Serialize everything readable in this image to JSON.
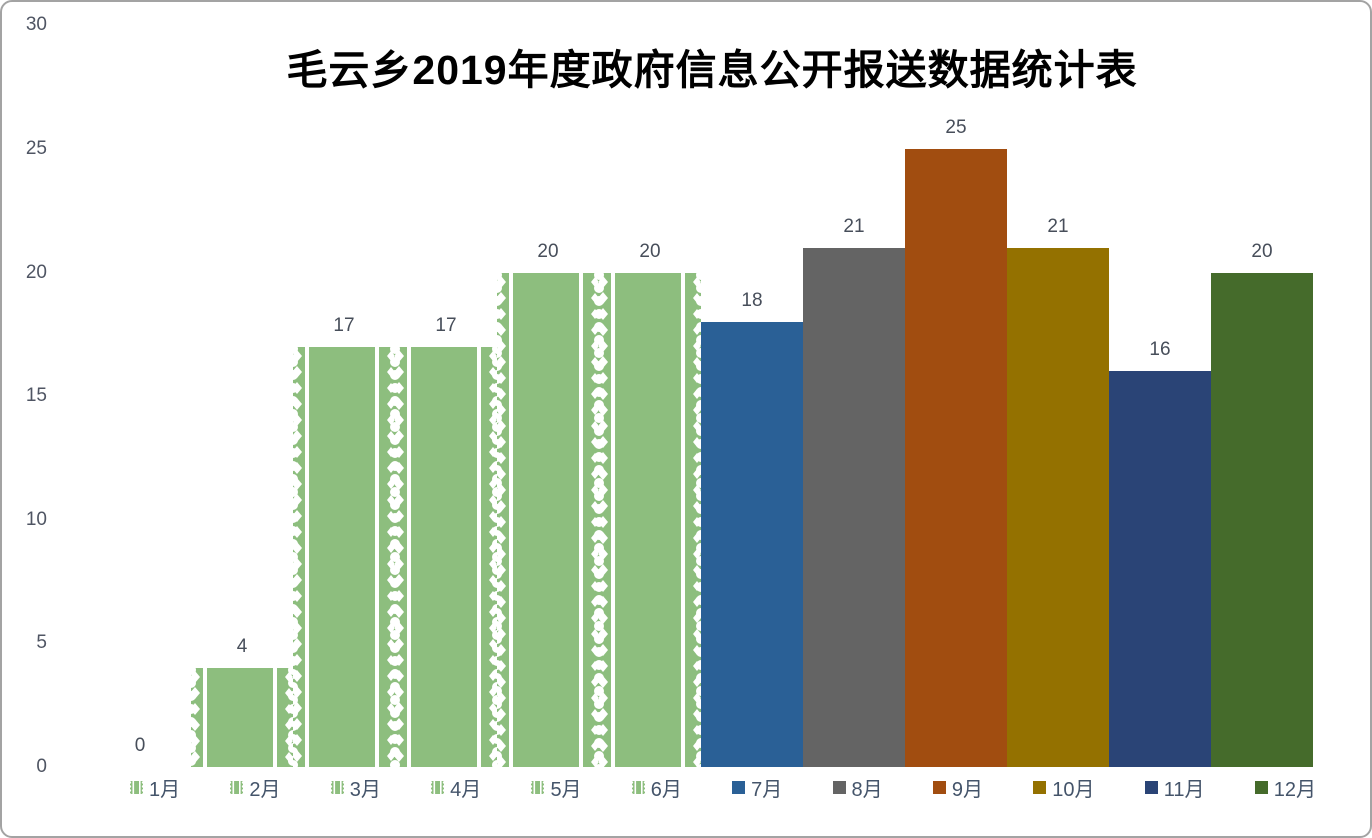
{
  "canvas": {
    "background": "#ffffff",
    "border_color": "#a3a3a3"
  },
  "text_colors": {
    "title": "#000000",
    "axis_labels": "#4f5563",
    "data_labels": "#474e5a",
    "legend_labels": "#44546a"
  },
  "chart_data": {
    "type": "bar",
    "title": "毛云乡2019年度政府信息公开报送数据统计表",
    "categories": [
      "1月",
      "2月",
      "3月",
      "4月",
      "5月",
      "6月",
      "7月",
      "8月",
      "9月",
      "10月",
      "11月",
      "12月"
    ],
    "values": [
      0,
      4,
      17,
      17,
      20,
      20,
      18,
      21,
      25,
      21,
      16,
      20
    ],
    "bars": [
      {
        "label": "1月",
        "value": 0,
        "color": "#8dbe7e",
        "fill": "pattern"
      },
      {
        "label": "2月",
        "value": 4,
        "color": "#8dbe7e",
        "fill": "pattern"
      },
      {
        "label": "3月",
        "value": 17,
        "color": "#8dbe7e",
        "fill": "pattern"
      },
      {
        "label": "4月",
        "value": 17,
        "color": "#8dbe7e",
        "fill": "pattern"
      },
      {
        "label": "5月",
        "value": 20,
        "color": "#8dbe7e",
        "fill": "pattern"
      },
      {
        "label": "6月",
        "value": 20,
        "color": "#8dbe7e",
        "fill": "pattern"
      },
      {
        "label": "7月",
        "value": 18,
        "color": "#2a6096",
        "fill": "solid"
      },
      {
        "label": "8月",
        "value": 21,
        "color": "#646464",
        "fill": "solid"
      },
      {
        "label": "9月",
        "value": 25,
        "color": "#a14d10",
        "fill": "solid"
      },
      {
        "label": "10月",
        "value": 21,
        "color": "#947100",
        "fill": "solid"
      },
      {
        "label": "11月",
        "value": 16,
        "color": "#2a4476",
        "fill": "solid"
      },
      {
        "label": "12月",
        "value": 20,
        "color": "#456b2b",
        "fill": "solid"
      }
    ],
    "fill_styles": {
      "pattern": "light-green picture fill with white vertical stripes, scalloped edges and diamond chains (months 1-6)",
      "solid": "flat solid color (months 7-12)"
    },
    "xlabel": "",
    "ylabel": "",
    "ylim": [
      0,
      30
    ],
    "yticks": [
      0,
      5,
      10,
      15,
      20,
      25,
      30
    ],
    "gridlines": false,
    "data_labels": true,
    "legend_position": "bottom"
  }
}
